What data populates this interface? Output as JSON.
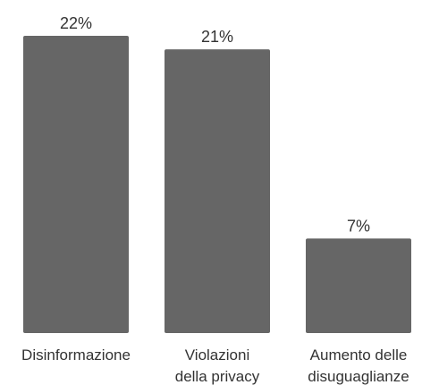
{
  "chart_data": {
    "type": "bar",
    "categories": [
      [
        "Disinformazione"
      ],
      [
        "Violazioni",
        "della privacy"
      ],
      [
        "Aumento delle",
        "disuguaglianze"
      ]
    ],
    "values": [
      22,
      21,
      7
    ],
    "value_labels": [
      "22%",
      "21%",
      "7%"
    ],
    "ylim": [
      0,
      22
    ],
    "grid": false,
    "bar_color": "#666666"
  }
}
